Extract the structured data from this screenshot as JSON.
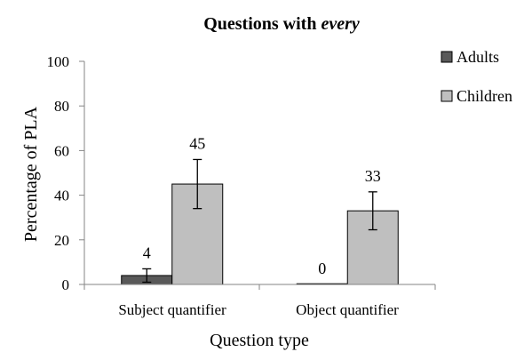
{
  "chart_data": {
    "type": "bar",
    "title": "Questions with every",
    "title_parts": [
      {
        "text": "Questions with ",
        "italic": false
      },
      {
        "text": "every",
        "italic": true
      }
    ],
    "xlabel": "Question type",
    "ylabel": "Percentage of PLA",
    "ylim": [
      0,
      100
    ],
    "yticks": [
      "0",
      "20",
      "40",
      "60",
      "80",
      "100"
    ],
    "ytick_values": [
      0,
      20,
      40,
      60,
      80,
      100
    ],
    "categories": [
      "Subject quantifier",
      "Object quantifier"
    ],
    "series": [
      {
        "name": "Adults",
        "values": [
          4,
          0
        ],
        "labels": [
          "4",
          "0"
        ],
        "errors": [
          3,
          0
        ],
        "color": "#595959"
      },
      {
        "name": "Children",
        "values": [
          45,
          33
        ],
        "labels": [
          "45",
          "33"
        ],
        "errors": [
          11,
          8.5
        ],
        "color": "#bfbfbf"
      }
    ],
    "legend": "right",
    "grid": false,
    "error_bars": true
  }
}
